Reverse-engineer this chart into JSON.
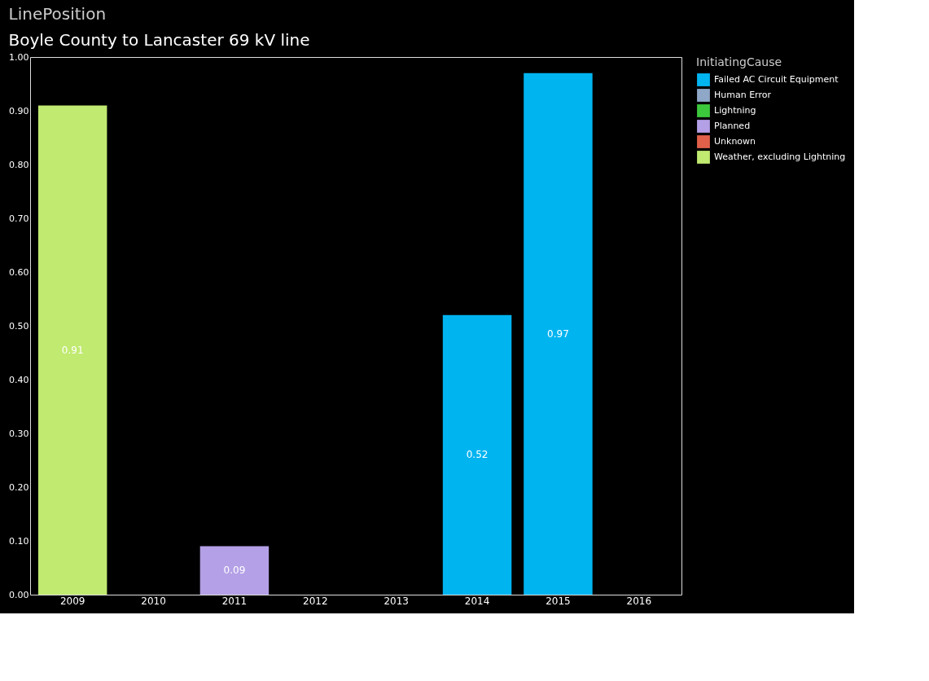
{
  "chart_data": {
    "type": "bar",
    "title": "LinePosition",
    "subtitle": "Boyle County to Lancaster 69 kV line",
    "legend_title": "InitiatingCause",
    "data_labels": true,
    "legend": "top right",
    "grid": false,
    "categories": [
      "2009",
      "2010",
      "2011",
      "2012",
      "2013",
      "2014",
      "2015",
      "2016"
    ],
    "ylim": [
      0,
      1.0
    ],
    "yticks": [
      {
        "value": 0,
        "label": "0.00"
      },
      {
        "value": 0.1,
        "label": "0.10"
      },
      {
        "value": 0.2,
        "label": "0.20"
      },
      {
        "value": 0.3,
        "label": "0.30"
      },
      {
        "value": 0.4,
        "label": "0.40"
      },
      {
        "value": 0.5,
        "label": "0.50"
      },
      {
        "value": 0.6,
        "label": "0.60"
      },
      {
        "value": 0.7,
        "label": "0.70"
      },
      {
        "value": 0.8,
        "label": "0.80"
      },
      {
        "value": 0.9,
        "label": "0.90"
      },
      {
        "value": 1.0,
        "label": "1.00"
      }
    ],
    "series": [
      {
        "name": "Failed AC Circuit Equipment",
        "color": "#00b4f0",
        "values": [
          null,
          null,
          null,
          null,
          null,
          0.52,
          0.97,
          null
        ]
      },
      {
        "name": "Human Error",
        "color": "#8fa8c8",
        "values": [
          null,
          null,
          null,
          null,
          null,
          null,
          null,
          null
        ]
      },
      {
        "name": "Lightning",
        "color": "#3cc83c",
        "values": [
          null,
          null,
          null,
          null,
          null,
          null,
          null,
          null
        ]
      },
      {
        "name": "Planned",
        "color": "#b4a0e6",
        "values": [
          null,
          null,
          0.09,
          null,
          null,
          null,
          null,
          null
        ]
      },
      {
        "name": "Unknown",
        "color": "#e0604a",
        "values": [
          null,
          null,
          null,
          null,
          null,
          null,
          null,
          null
        ]
      },
      {
        "name": "Weather, excluding Lightning",
        "color": "#c0ea70",
        "values": [
          0.91,
          null,
          null,
          null,
          null,
          null,
          null,
          null
        ]
      }
    ]
  }
}
